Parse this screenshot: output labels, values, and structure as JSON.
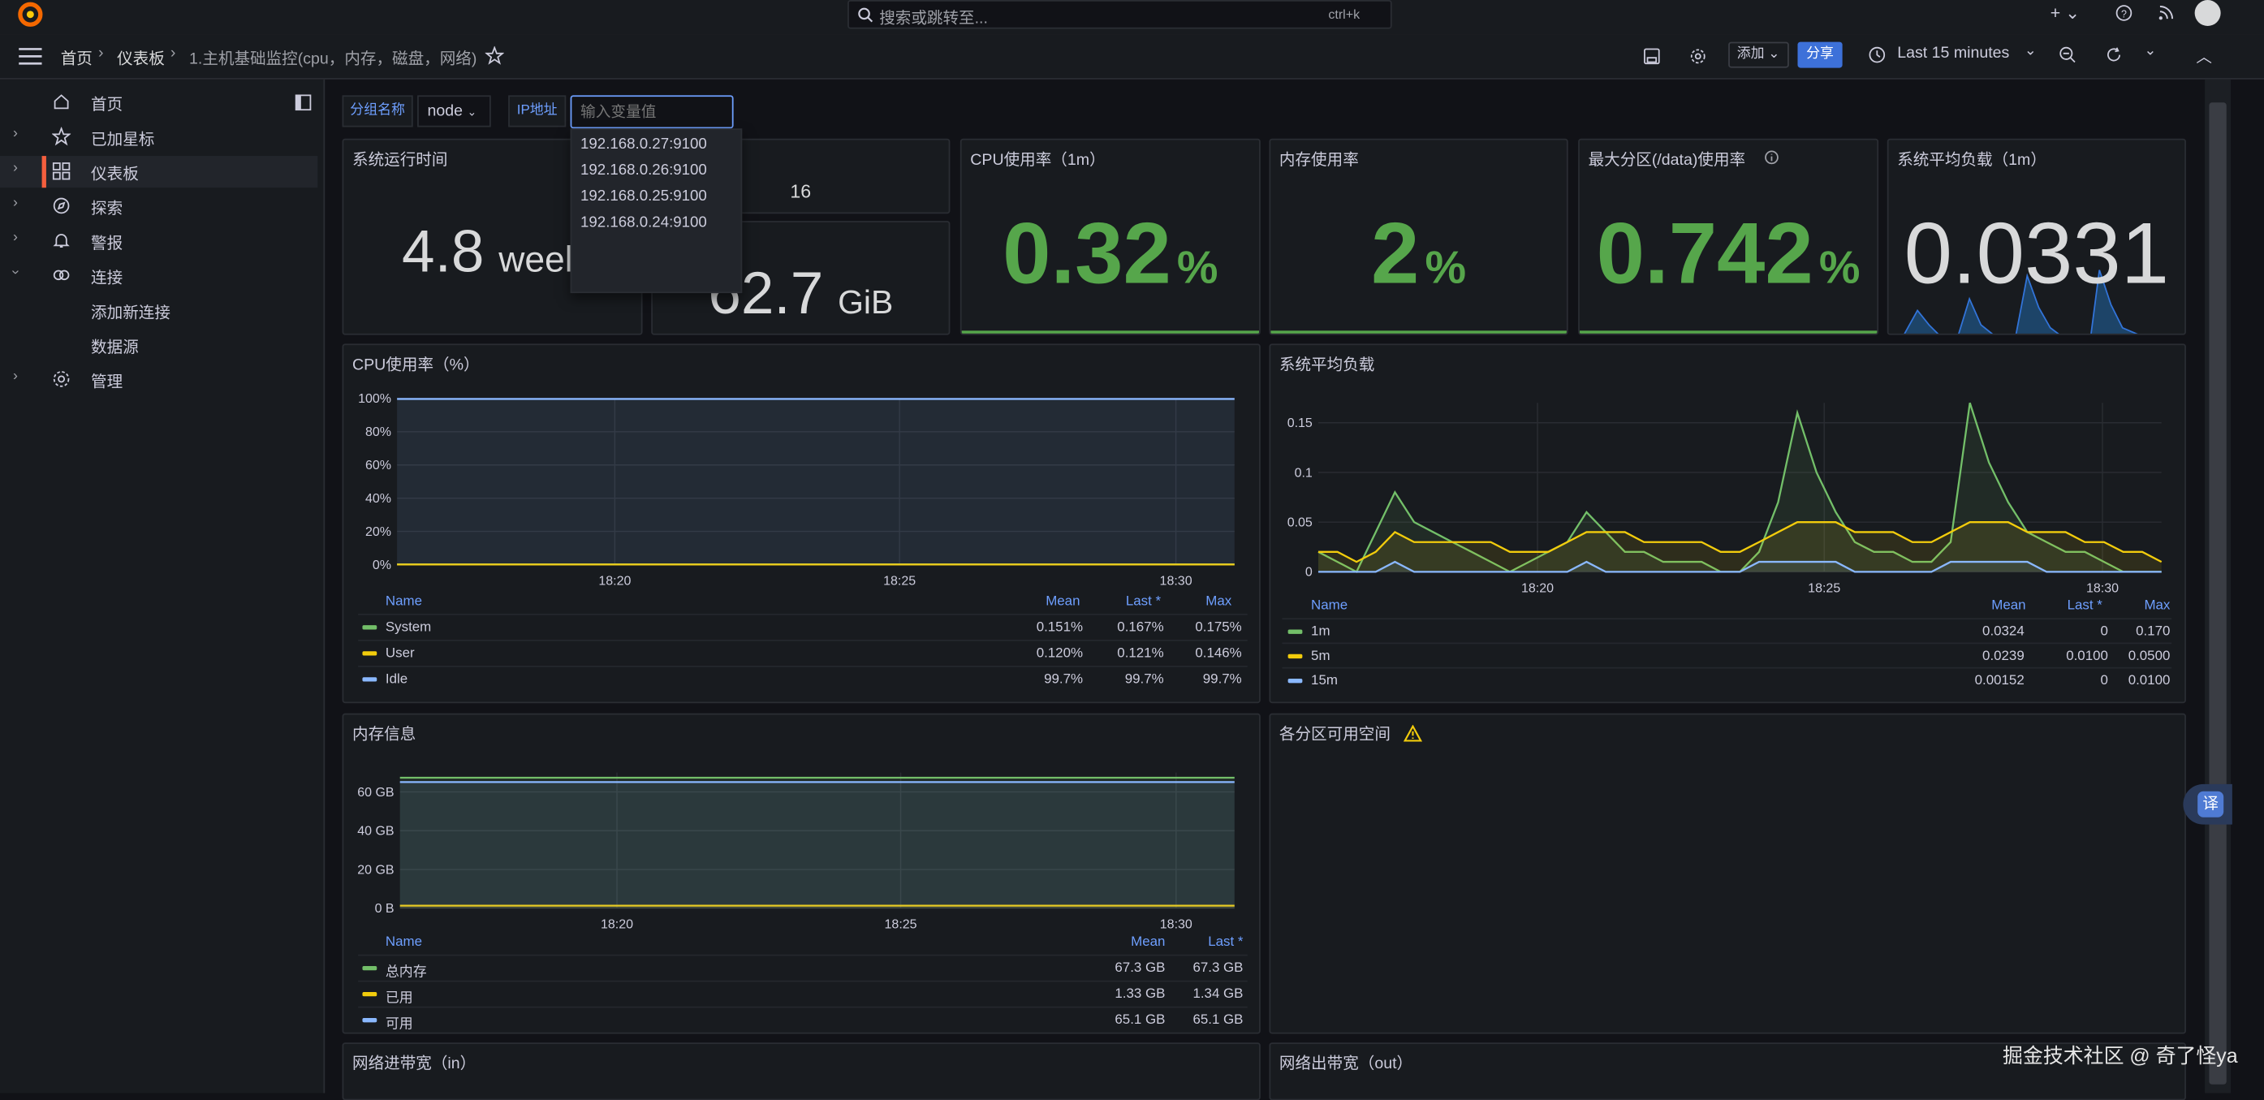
{
  "top": {
    "search_placeholder": "搜索或跳转至...",
    "shortcut": "ctrl+k"
  },
  "nav": {
    "breadcrumb": [
      "首页",
      "仪表板",
      "1.主机基础监控(cpu，内存，磁盘，网络)"
    ],
    "add_label": "添加",
    "share_label": "分享",
    "time_range": "Last 15 minutes"
  },
  "sidebar": {
    "items": [
      {
        "label": "首页",
        "icon": "home-icon"
      },
      {
        "label": "已加星标",
        "icon": "star-icon"
      },
      {
        "label": "仪表板",
        "icon": "dashboards-icon"
      },
      {
        "label": "探索",
        "icon": "compass-icon"
      },
      {
        "label": "警报",
        "icon": "bell-icon"
      },
      {
        "label": "连接",
        "icon": "link-icon"
      },
      {
        "label": "添加新连接",
        "icon": ""
      },
      {
        "label": "数据源",
        "icon": ""
      },
      {
        "label": "管理",
        "icon": "gear-icon"
      }
    ]
  },
  "variables": {
    "group_label": "分组名称",
    "group_value": "node",
    "ip_label": "IP地址",
    "ip_placeholder": "输入变量值",
    "options": [
      "192.168.0.27:9100",
      "192.168.0.26:9100",
      "192.168.0.25:9100",
      "192.168.0.24:9100"
    ]
  },
  "stats": {
    "uptime": {
      "title": "系统运行时间",
      "value": "4.8",
      "unit": "week"
    },
    "cpu_cores": {
      "value": "16"
    },
    "total_mem": {
      "value": "62.7",
      "unit": "GiB"
    },
    "cpu_usage": {
      "title": "CPU使用率（1m）",
      "value": "0.32",
      "unit": "%"
    },
    "mem_usage": {
      "title": "内存使用率",
      "value": "2",
      "unit": "%"
    },
    "disk_usage": {
      "title": "最大分区(/data)使用率",
      "value": "0.742",
      "unit": "%"
    },
    "load1": {
      "title": "系统平均负载（1m）",
      "value": "0.0331"
    }
  },
  "panels": {
    "cpu_chart_title": "CPU使用率（%）",
    "load_chart_title": "系统平均负载",
    "mem_chart_title": "内存信息",
    "disk_title": "各分区可用空间",
    "net_in_title": "网络进带宽（in）",
    "net_out_title": "网络出带宽（out）"
  },
  "legend_headers": {
    "name": "Name",
    "mean": "Mean",
    "last": "Last *",
    "max": "Max"
  },
  "cpu_legend": [
    {
      "name": "System",
      "mean": "0.151%",
      "last": "0.167%",
      "max": "0.175%",
      "color": "#73bf69"
    },
    {
      "name": "User",
      "mean": "0.120%",
      "last": "0.121%",
      "max": "0.146%",
      "color": "#f2cc0c"
    },
    {
      "name": "Idle",
      "mean": "99.7%",
      "last": "99.7%",
      "max": "99.7%",
      "color": "#8ab8ff"
    }
  ],
  "load_legend": [
    {
      "name": "1m",
      "mean": "0.0324",
      "last": "0",
      "max": "0.170",
      "color": "#73bf69"
    },
    {
      "name": "5m",
      "mean": "0.0239",
      "last": "0.0100",
      "max": "0.0500",
      "color": "#f2cc0c"
    },
    {
      "name": "15m",
      "mean": "0.00152",
      "last": "0",
      "max": "0.0100",
      "color": "#8ab8ff"
    }
  ],
  "mem_legend": [
    {
      "name": "总内存",
      "mean": "67.3 GB",
      "last": "67.3 GB",
      "color": "#73bf69"
    },
    {
      "name": "已用",
      "mean": "1.33 GB",
      "last": "1.34 GB",
      "color": "#f2cc0c"
    },
    {
      "name": "可用",
      "mean": "65.1 GB",
      "last": "65.1 GB",
      "color": "#8ab8ff"
    }
  ],
  "chart_data": [
    {
      "type": "line",
      "title": "CPU使用率（%）",
      "x_ticks": [
        "18:20",
        "18:25",
        "18:30"
      ],
      "y_ticks": [
        "100%",
        "80%",
        "60%",
        "40%",
        "20%",
        "0%"
      ],
      "ylim": [
        0,
        100
      ],
      "x": [
        0,
        1,
        2,
        3,
        4,
        5,
        6,
        7,
        8,
        9,
        10,
        11,
        12,
        13,
        14
      ],
      "series": [
        {
          "name": "System",
          "color": "#73bf69",
          "values": [
            0.15,
            0.15,
            0.15,
            0.15,
            0.15,
            0.15,
            0.15,
            0.15,
            0.15,
            0.15,
            0.15,
            0.15,
            0.15,
            0.15,
            0.17
          ]
        },
        {
          "name": "User",
          "color": "#f2cc0c",
          "values": [
            0.12,
            0.12,
            0.12,
            0.12,
            0.12,
            0.12,
            0.12,
            0.12,
            0.12,
            0.12,
            0.12,
            0.12,
            0.12,
            0.12,
            0.12
          ]
        },
        {
          "name": "Idle",
          "color": "#8ab8ff",
          "values": [
            99.7,
            99.7,
            99.7,
            99.7,
            99.7,
            99.7,
            99.7,
            99.7,
            99.7,
            99.7,
            99.7,
            99.7,
            99.7,
            99.7,
            99.7
          ]
        }
      ]
    },
    {
      "type": "line",
      "title": "系统平均负载",
      "x_ticks": [
        "18:20",
        "18:25",
        "18:30"
      ],
      "y_ticks": [
        "0.15",
        "0.1",
        "0.05",
        "0"
      ],
      "ylim": [
        0,
        0.17
      ],
      "x": [
        0,
        1,
        2,
        3,
        4,
        5,
        6,
        7,
        8,
        9,
        10,
        11,
        12,
        13,
        14,
        15,
        16,
        17,
        18,
        19,
        20,
        21,
        22,
        23,
        24,
        25,
        26,
        27,
        28,
        29,
        30,
        31,
        32,
        33,
        34,
        35,
        36,
        37,
        38,
        39,
        40,
        41,
        42,
        43,
        44
      ],
      "series": [
        {
          "name": "1m",
          "color": "#73bf69",
          "values": [
            0.02,
            0.01,
            0,
            0.04,
            0.08,
            0.05,
            0.04,
            0.03,
            0.02,
            0.01,
            0,
            0.01,
            0.02,
            0.03,
            0.06,
            0.04,
            0.02,
            0.02,
            0.01,
            0.01,
            0.01,
            0,
            0,
            0.02,
            0.07,
            0.16,
            0.1,
            0.06,
            0.03,
            0.02,
            0.02,
            0.01,
            0.01,
            0.03,
            0.17,
            0.11,
            0.07,
            0.04,
            0.03,
            0.02,
            0.02,
            0.01,
            0,
            0,
            0
          ]
        },
        {
          "name": "5m",
          "color": "#f2cc0c",
          "values": [
            0.02,
            0.02,
            0.01,
            0.02,
            0.04,
            0.03,
            0.03,
            0.03,
            0.03,
            0.03,
            0.02,
            0.02,
            0.02,
            0.03,
            0.04,
            0.04,
            0.04,
            0.03,
            0.03,
            0.03,
            0.03,
            0.02,
            0.02,
            0.03,
            0.04,
            0.05,
            0.05,
            0.05,
            0.04,
            0.04,
            0.04,
            0.03,
            0.03,
            0.04,
            0.05,
            0.05,
            0.05,
            0.04,
            0.04,
            0.04,
            0.03,
            0.03,
            0.02,
            0.02,
            0.01
          ]
        },
        {
          "name": "15m",
          "color": "#8ab8ff",
          "values": [
            0,
            0,
            0,
            0,
            0.01,
            0,
            0,
            0,
            0,
            0,
            0,
            0,
            0,
            0,
            0.01,
            0,
            0,
            0,
            0,
            0,
            0,
            0,
            0,
            0.01,
            0.01,
            0.01,
            0.01,
            0.01,
            0,
            0,
            0,
            0,
            0,
            0.01,
            0.01,
            0.01,
            0.01,
            0.01,
            0,
            0,
            0,
            0,
            0,
            0,
            0
          ]
        }
      ]
    },
    {
      "type": "line",
      "title": "内存信息",
      "x_ticks": [
        "18:20",
        "18:25",
        "18:30"
      ],
      "y_ticks": [
        "60 GB",
        "40 GB",
        "20 GB",
        "0 B"
      ],
      "ylim": [
        0,
        70
      ],
      "x": [
        0,
        1,
        2,
        3,
        4,
        5,
        6,
        7,
        8,
        9,
        10
      ],
      "series": [
        {
          "name": "总内存",
          "color": "#73bf69",
          "values": [
            67.3,
            67.3,
            67.3,
            67.3,
            67.3,
            67.3,
            67.3,
            67.3,
            67.3,
            67.3,
            67.3
          ]
        },
        {
          "name": "已用",
          "color": "#f2cc0c",
          "values": [
            1.33,
            1.33,
            1.33,
            1.33,
            1.33,
            1.33,
            1.33,
            1.33,
            1.33,
            1.33,
            1.34
          ]
        },
        {
          "name": "可用",
          "color": "#8ab8ff",
          "values": [
            65.1,
            65.1,
            65.1,
            65.1,
            65.1,
            65.1,
            65.1,
            65.1,
            65.1,
            65.1,
            65.1
          ]
        }
      ]
    }
  ],
  "watermark": "掘金技术社区 @ 奇了怪ya",
  "translate_badge": "译"
}
